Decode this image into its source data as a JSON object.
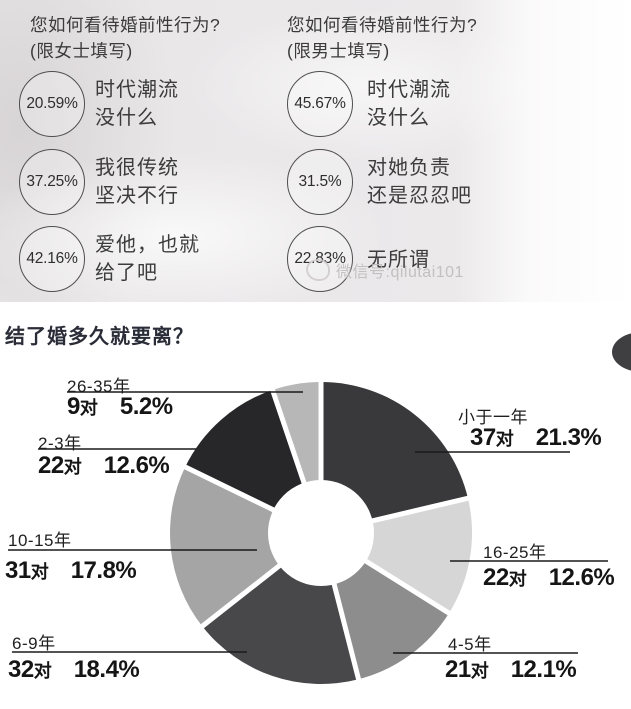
{
  "surveys": [
    {
      "title_line1": "您如何看待婚前性行为?",
      "title_line2": "(限女士填写)",
      "options": [
        {
          "percent": "20.59%",
          "line1": "时代潮流",
          "line2": "没什么"
        },
        {
          "percent": "37.25%",
          "line1": "我很传统",
          "line2": "坚决不行"
        },
        {
          "percent": "42.16%",
          "line1": "爱他，也就",
          "line2": "给了吧"
        }
      ]
    },
    {
      "title_line1": "您如何看待婚前性行为?",
      "title_line2": "(限男士填写)",
      "options": [
        {
          "percent": "45.67%",
          "line1": "时代潮流",
          "line2": "没什么"
        },
        {
          "percent": "31.5%",
          "line1": "对她负责",
          "line2": "还是忍忍吧"
        },
        {
          "percent": "22.83%",
          "line1": "无所谓",
          "line2": ""
        }
      ]
    }
  ],
  "watermark": "微信号:qilutai101",
  "chart_data": {
    "type": "pie",
    "subtype": "donut",
    "title": "结了婚多久就要离？",
    "unit": "对",
    "start_angle_deg": 0,
    "clockwise": true,
    "hole_ratio": 0.35,
    "legend": "none",
    "segments": [
      {
        "label": "小于一年",
        "pairs_num": "37",
        "pairs_unit": "对",
        "percent": "21.3%",
        "value": 21.3,
        "color": "#39393b"
      },
      {
        "label": "16-25年",
        "pairs_num": "22",
        "pairs_unit": "对",
        "percent": "12.6%",
        "value": 12.6,
        "color": "#d6d6d6"
      },
      {
        "label": "4-5年",
        "pairs_num": "21",
        "pairs_unit": "对",
        "percent": "12.1%",
        "value": 12.1,
        "color": "#8d8d8d"
      },
      {
        "label": "6-9年",
        "pairs_num": "32",
        "pairs_unit": "对",
        "percent": "18.4%",
        "value": 18.4,
        "color": "#48484a"
      },
      {
        "label": "10-15年",
        "pairs_num": "31",
        "pairs_unit": "对",
        "percent": "17.8%",
        "value": 17.8,
        "color": "#a5a5a5"
      },
      {
        "label": "2-3年",
        "pairs_num": "22",
        "pairs_unit": "对",
        "percent": "12.6%",
        "value": 12.6,
        "color": "#27272a"
      },
      {
        "label": "26-35年",
        "pairs_num": "9",
        "pairs_unit": "对",
        "percent": "5.2%",
        "value": 5.2,
        "color": "#b7b7b7"
      }
    ]
  }
}
